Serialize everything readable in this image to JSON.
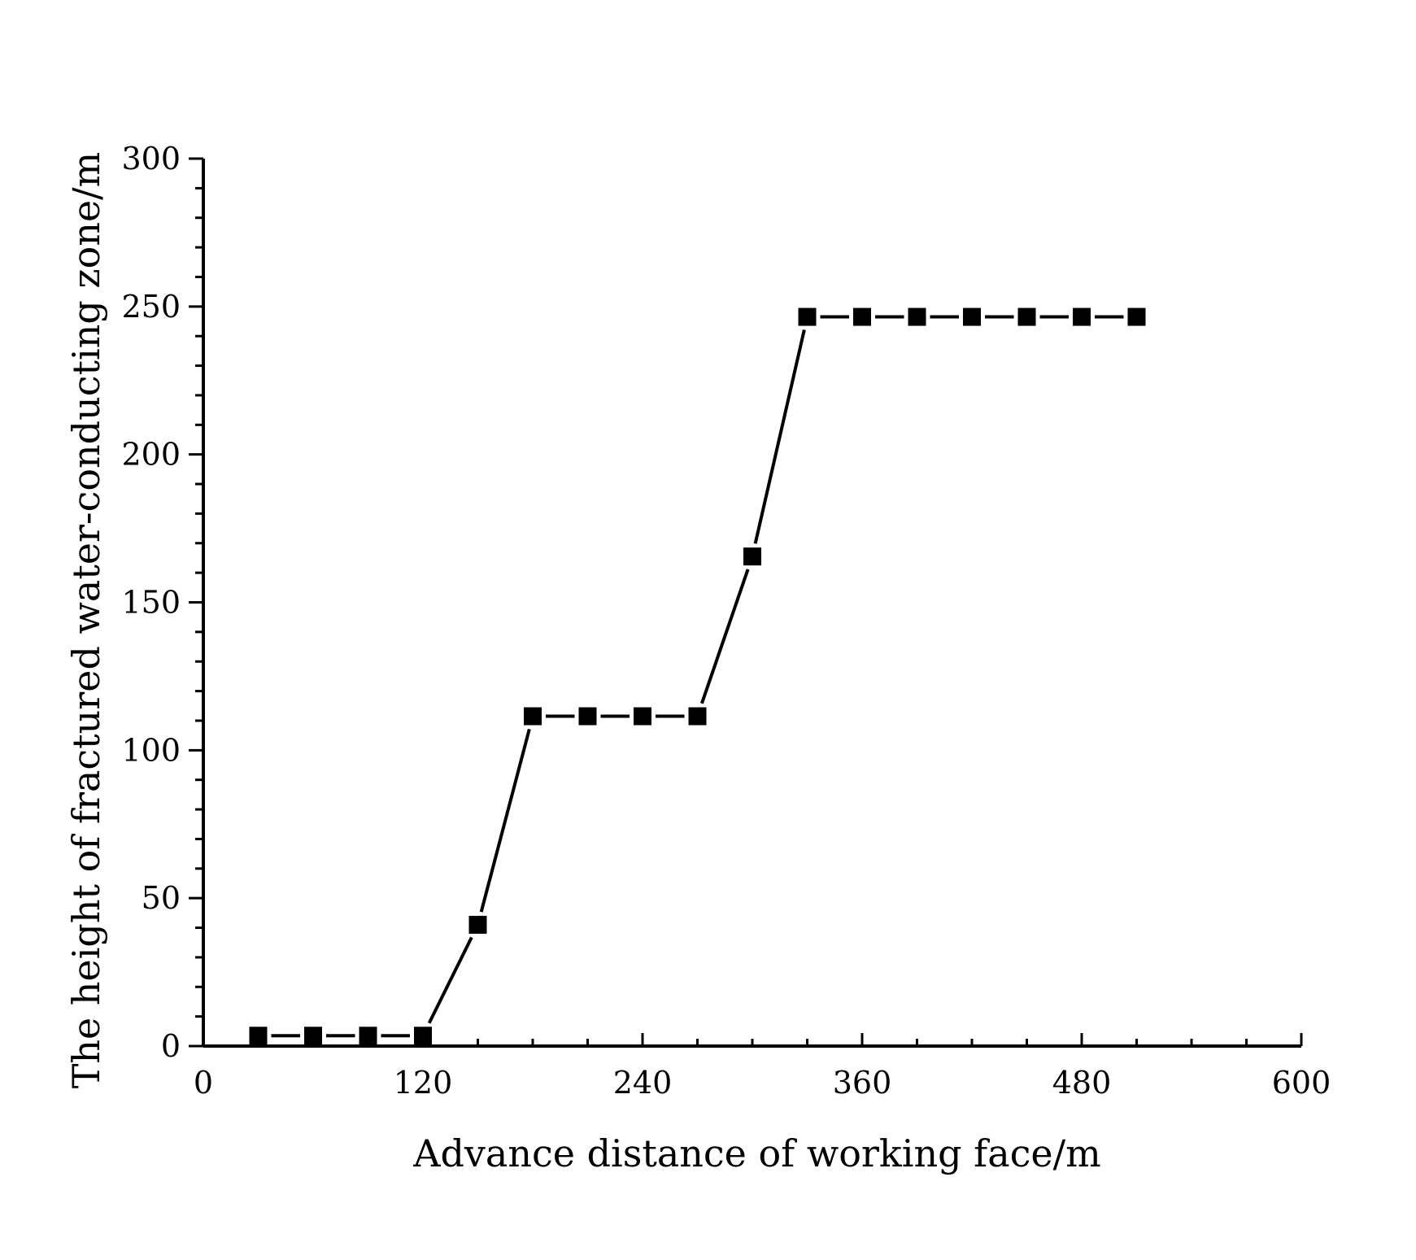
{
  "chart_data": {
    "type": "line",
    "xlabel": "Advance distance of working face/m",
    "ylabel": "The height of fractured water-conducting zone/m",
    "xlim": [
      0,
      600
    ],
    "ylim": [
      0,
      300
    ],
    "x_ticks": [
      0,
      120,
      240,
      360,
      480,
      600
    ],
    "y_ticks": [
      0,
      50,
      100,
      150,
      200,
      250,
      300
    ],
    "x_tick_labels": [
      "0",
      "120",
      "240",
      "360",
      "480",
      "600"
    ],
    "y_tick_labels": [
      "0",
      "50",
      "100",
      "150",
      "200",
      "250",
      "300"
    ],
    "grid": false,
    "legend": "none",
    "series": [
      {
        "marker": "square",
        "color": "#000000",
        "x": [
          30,
          60,
          90,
          120,
          150,
          180,
          210,
          240,
          270,
          300,
          330,
          360,
          390,
          420,
          450,
          480,
          510
        ],
        "y": [
          3.5,
          3.5,
          3.5,
          3.5,
          41,
          111.5,
          111.5,
          111.5,
          111.5,
          165.5,
          246.5,
          246.5,
          246.5,
          246.5,
          246.5,
          246.5,
          246.5
        ]
      }
    ]
  }
}
